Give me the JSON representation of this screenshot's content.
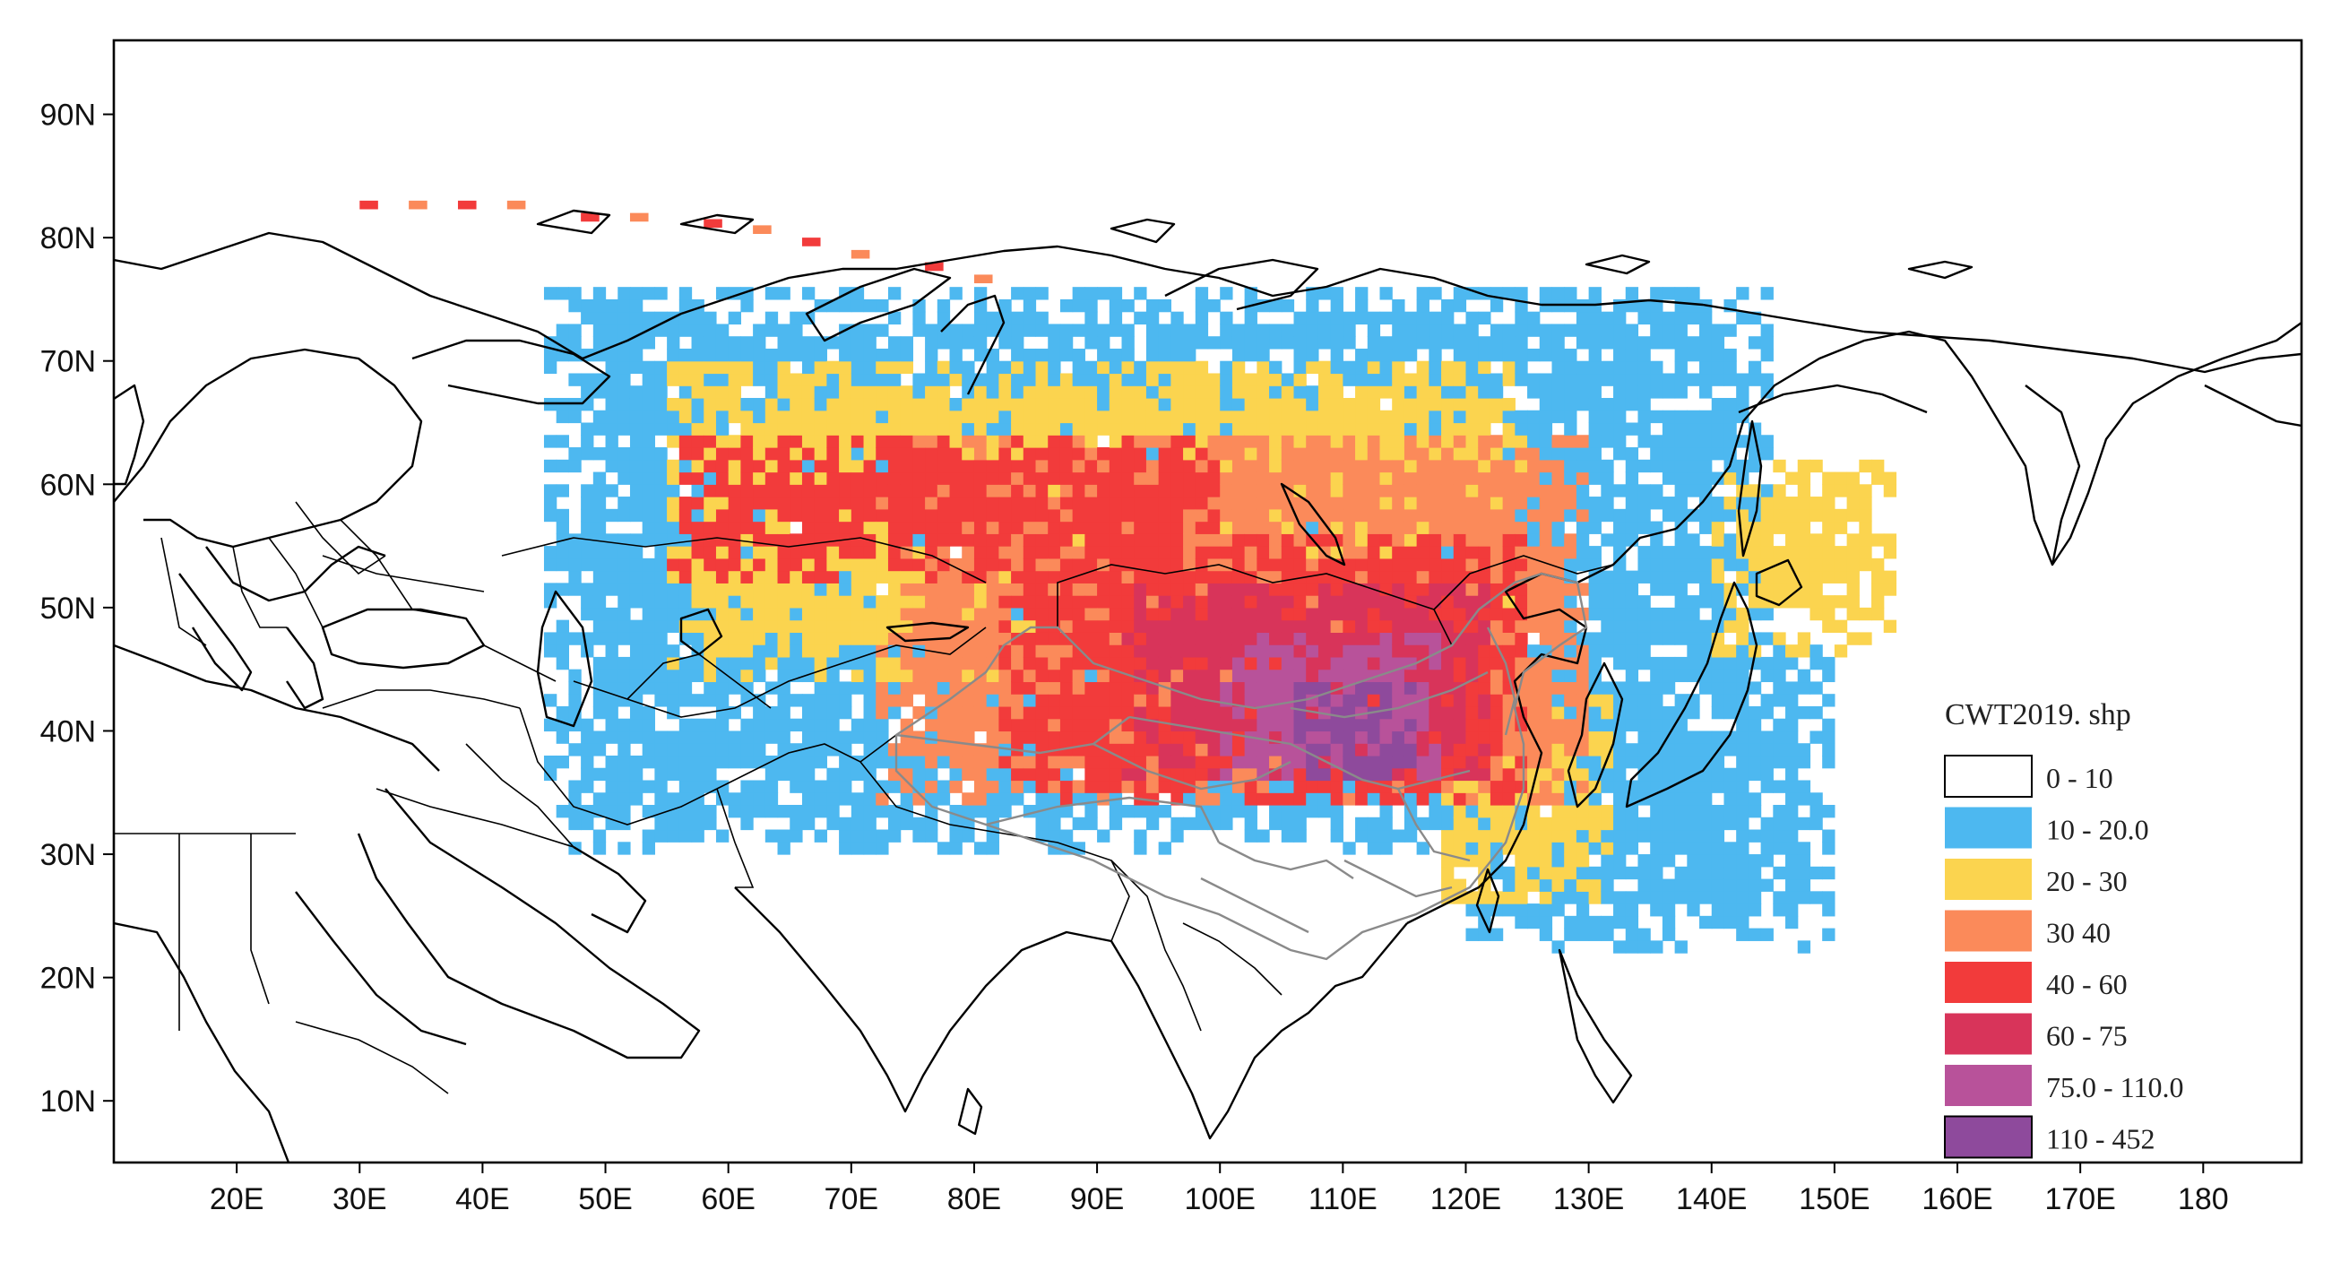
{
  "map": {
    "projection": "equirectangular",
    "lon_range": [
      10,
      188
    ],
    "lat_range": [
      5,
      96
    ],
    "x_ticks": [
      {
        "lon": 20,
        "label": "20E"
      },
      {
        "lon": 30,
        "label": "30E"
      },
      {
        "lon": 40,
        "label": "40E"
      },
      {
        "lon": 50,
        "label": "50E"
      },
      {
        "lon": 60,
        "label": "60E"
      },
      {
        "lon": 70,
        "label": "70E"
      },
      {
        "lon": 80,
        "label": "80E"
      },
      {
        "lon": 90,
        "label": "90E"
      },
      {
        "lon": 100,
        "label": "100E"
      },
      {
        "lon": 110,
        "label": "110E"
      },
      {
        "lon": 120,
        "label": "120E"
      },
      {
        "lon": 130,
        "label": "130E"
      },
      {
        "lon": 140,
        "label": "140E"
      },
      {
        "lon": 150,
        "label": "150E"
      },
      {
        "lon": 160,
        "label": "160E"
      },
      {
        "lon": 170,
        "label": "170E"
      },
      {
        "lon": 180,
        "label": "180"
      }
    ],
    "y_ticks": [
      {
        "lat": 10,
        "label": "10N"
      },
      {
        "lat": 20,
        "label": "20N"
      },
      {
        "lat": 30,
        "label": "30N"
      },
      {
        "lat": 40,
        "label": "40N"
      },
      {
        "lat": 50,
        "label": "50N"
      },
      {
        "lat": 60,
        "label": "60N"
      },
      {
        "lat": 70,
        "label": "70N"
      },
      {
        "lat": 80,
        "label": "80N"
      },
      {
        "lat": 90,
        "label": "90N"
      }
    ],
    "coastline_color": "#000000",
    "china_border_color": "#8a8a8a"
  },
  "legend": {
    "title": "CWT2019. shp",
    "position": "bottom-right",
    "classes": [
      {
        "label": "0 - 10",
        "color": "#ffffff"
      },
      {
        "label": "10 - 20.0",
        "color": "#4db8f0"
      },
      {
        "label": "20 - 30",
        "color": "#fbd44f"
      },
      {
        "label": "30   40",
        "color": "#fb8a5a"
      },
      {
        "label": "40 - 60",
        "color": "#f23b3b"
      },
      {
        "label": "60 - 75",
        "color": "#d8345a"
      },
      {
        "label": "75.0 - 110.0",
        "color": "#b8529a"
      },
      {
        "label": "110 - 452",
        "color": "#8e4a9c"
      }
    ]
  },
  "cwt_regions": [
    {
      "class": 1,
      "lon": [
        45,
        145
      ],
      "lat": [
        30,
        76
      ]
    },
    {
      "class": 1,
      "lon": [
        120,
        150
      ],
      "lat": [
        22,
        48
      ]
    },
    {
      "class": 2,
      "lon": [
        55,
        125
      ],
      "lat": [
        44,
        70
      ]
    },
    {
      "class": 2,
      "lon": [
        118,
        132
      ],
      "lat": [
        26,
        44
      ]
    },
    {
      "class": 2,
      "lon": [
        140,
        155
      ],
      "lat": [
        46,
        62
      ]
    },
    {
      "class": 3,
      "lon": [
        72,
        130
      ],
      "lat": [
        34,
        64
      ]
    },
    {
      "class": 4,
      "lon": [
        82,
        125
      ],
      "lat": [
        34,
        56
      ]
    },
    {
      "class": 4,
      "lon": [
        55,
        100
      ],
      "lat": [
        52,
        64
      ]
    },
    {
      "class": 5,
      "lon": [
        92,
        122
      ],
      "lat": [
        36,
        52
      ]
    },
    {
      "class": 6,
      "lon": [
        100,
        118
      ],
      "lat": [
        36,
        48
      ]
    },
    {
      "class": 7,
      "lon": [
        106,
        116
      ],
      "lat": [
        36,
        44
      ]
    }
  ]
}
